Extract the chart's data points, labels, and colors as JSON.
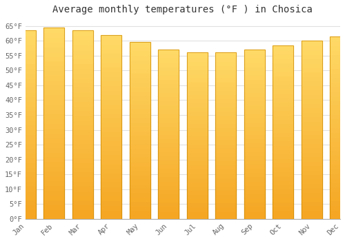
{
  "months": [
    "Jan",
    "Feb",
    "Mar",
    "Apr",
    "May",
    "Jun",
    "Jul",
    "Aug",
    "Sep",
    "Oct",
    "Nov",
    "Dec"
  ],
  "values": [
    63.5,
    64.5,
    63.5,
    62.0,
    59.5,
    57.0,
    56.0,
    56.0,
    57.0,
    58.5,
    60.0,
    61.5
  ],
  "title": "Average monthly temperatures (°F ) in Chosica",
  "bar_color_bottom": "#F5A623",
  "bar_color_top": "#FFD966",
  "background_color": "#ffffff",
  "plot_bg_color": "#ffffff",
  "grid_color": "#e0e0e0",
  "ylim": [
    0,
    67
  ],
  "ytick_step": 5,
  "title_fontsize": 10,
  "tick_fontsize": 7.5,
  "bar_width": 0.72,
  "figsize": [
    5.0,
    3.5
  ],
  "dpi": 100
}
